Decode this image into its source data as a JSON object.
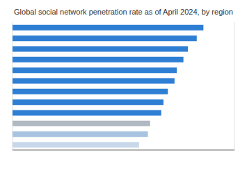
{
  "chart_data": {
    "type": "bar",
    "orientation": "horizontal",
    "title": "Global social network penetration rate as of April 2024, by region",
    "categories": [
      null,
      null,
      null,
      null,
      null,
      null,
      null,
      null,
      null,
      null,
      null,
      null
    ],
    "values": [
      57,
      61,
      62,
      67,
      68,
      70,
      73,
      74,
      77,
      79,
      83,
      86
    ],
    "colors": [
      "#c8d8ea",
      "#a8c4e0",
      "#b0b8c1",
      "#2e7fd4",
      "#2e7fd4",
      "#2e7fd4",
      "#2e7fd4",
      "#2e7fd4",
      "#2e7fd4",
      "#2e7fd4",
      "#2e7fd4",
      "#2e7fd4"
    ],
    "xlim": [
      0,
      100
    ],
    "xticks": [
      0,
      20,
      40,
      60,
      80,
      100
    ],
    "grid": true,
    "tick_labels": false
  }
}
